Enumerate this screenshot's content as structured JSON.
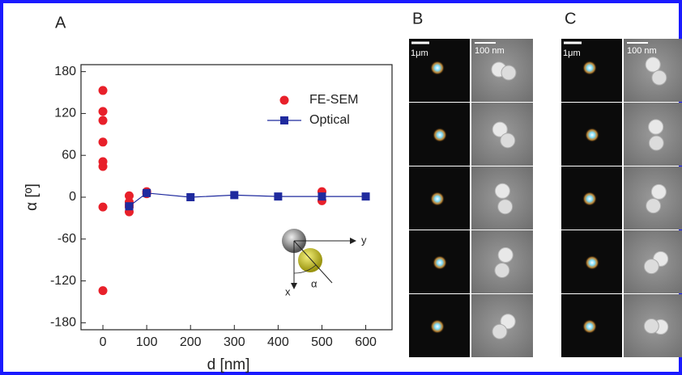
{
  "chart_data": {
    "type": "scatter",
    "panel_label": "A",
    "x_label": "d [nm]",
    "y_label": "α [º]",
    "xlim": [
      -50,
      660
    ],
    "ylim": [
      -190,
      190
    ],
    "xticks": [
      0,
      100,
      200,
      300,
      400,
      500,
      600
    ],
    "yticks": [
      180,
      120,
      60,
      0,
      -60,
      -120,
      -180
    ],
    "legend": "upper right",
    "series": [
      {
        "name": "FE-SEM",
        "color": "#e8202a",
        "marker": "circle",
        "line": false,
        "x": [
          0,
          0,
          0,
          0,
          0,
          0,
          0,
          0,
          60,
          60,
          60,
          60,
          60,
          100,
          100,
          500,
          500
        ],
        "values": [
          153,
          123,
          110,
          79,
          51,
          44,
          -14,
          -134,
          2,
          -7,
          -14,
          -21,
          -11,
          8,
          5,
          8,
          -5
        ]
      },
      {
        "name": "Optical",
        "color": "#1f2a9e",
        "marker": "square",
        "line": true,
        "x": [
          60,
          100,
          200,
          300,
          400,
          500,
          600
        ],
        "values": [
          -13,
          6,
          0,
          3,
          1,
          1,
          1
        ]
      }
    ],
    "inset": {
      "y_axis": "y",
      "x_axis": "x",
      "angle": "α"
    }
  },
  "panels": [
    {
      "label": "B",
      "scale_bars": [
        "1μm",
        "100 nm"
      ]
    },
    {
      "label": "C",
      "scale_bars": [
        "1μm",
        "100 nm"
      ]
    }
  ]
}
